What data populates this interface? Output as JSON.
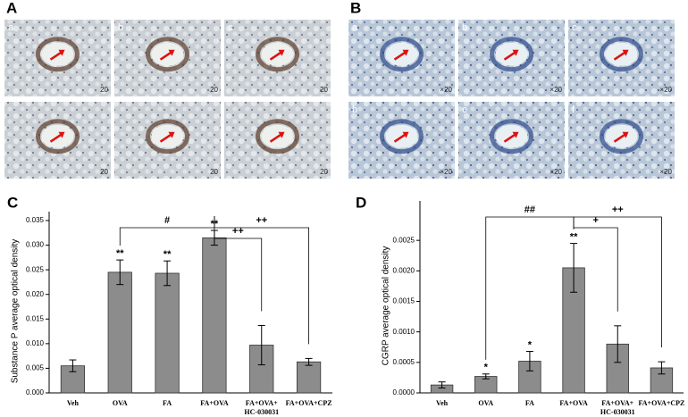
{
  "panels": [
    {
      "label": "A",
      "tiles": [
        {
          "sublabel": "a",
          "magnification": "20"
        },
        {
          "sublabel": "b",
          "magnification": "20"
        },
        {
          "sublabel": "c",
          "magnification": "20"
        },
        {
          "magnification": "20"
        },
        {
          "magnification": "20"
        },
        {
          "magnification": "20"
        }
      ]
    },
    {
      "label": "B",
      "tiles": [
        {
          "sublabel": "a",
          "magnification": "×20"
        },
        {
          "sublabel": "b",
          "magnification": "×20"
        },
        {
          "sublabel": "c",
          "magnification": "×20"
        },
        {
          "sublabel": "b",
          "magnification": "×20"
        },
        {
          "sublabel": "e",
          "magnification": "×20"
        },
        {
          "sublabel": "f",
          "magnification": "×20"
        }
      ]
    }
  ],
  "chart_data": [
    {
      "type": "bar",
      "panel_label": "C",
      "y_label": "Substance P average optical density",
      "categories": [
        "Veh",
        "OVA",
        "FA",
        "FA+OVA",
        "FA+OVA+ HC-030031",
        "FA+OVA+CPZ"
      ],
      "values": [
        0.0055,
        0.0245,
        0.0243,
        0.0315,
        0.0097,
        0.0063
      ],
      "errors": [
        0.0012,
        0.0025,
        0.0025,
        0.0015,
        0.004,
        0.0007
      ],
      "bar_annotations": [
        null,
        "**",
        "**",
        "**",
        null,
        null
      ],
      "brackets": [
        {
          "from": 1,
          "to": 3,
          "label": "#"
        },
        {
          "from": 3,
          "to": 5,
          "label": "++"
        },
        {
          "from": 3,
          "to": 4,
          "label": "++"
        }
      ],
      "color": "#8c8c8c",
      "ylim": [
        0,
        0.035
      ],
      "yticks": [
        {
          "value": 0,
          "label": "0.000"
        },
        {
          "value": 0.005,
          "label": "0.005"
        },
        {
          "value": 0.01,
          "label": "0.010"
        },
        {
          "value": 0.015,
          "label": "0.015"
        },
        {
          "value": 0.02,
          "label": "0.020"
        },
        {
          "value": 0.025,
          "label": "0.025"
        },
        {
          "value": 0.03,
          "label": "0.030"
        },
        {
          "value": 0.035,
          "label": "0.035"
        }
      ]
    },
    {
      "type": "bar",
      "panel_label": "D",
      "y_label": "CGRP average optical density",
      "categories": [
        "Veh",
        "OVA",
        "FA",
        "FA+OVA",
        "FA+OVA+ HC-030031",
        "FA+OVA+CPZ"
      ],
      "values": [
        0.00013,
        0.00027,
        0.00052,
        0.00205,
        0.0008,
        0.00041
      ],
      "errors": [
        5e-05,
        4e-05,
        0.00016,
        0.0004,
        0.0003,
        0.0001
      ],
      "bar_annotations": [
        null,
        "*",
        "*",
        "**",
        null,
        null
      ],
      "brackets": [
        {
          "from": 1,
          "to": 3,
          "label": "##"
        },
        {
          "from": 3,
          "to": 5,
          "label": "++"
        },
        {
          "from": 3,
          "to": 4,
          "label": "+"
        }
      ],
      "color": "#8c8c8c",
      "ylim": [
        0,
        0.003
      ],
      "yticks": [
        {
          "value": 0,
          "label": "0.0000"
        },
        {
          "value": 0.0005,
          "label": "0.0005"
        },
        {
          "value": 0.001,
          "label": "0.0010"
        },
        {
          "value": 0.0015,
          "label": "0.0015"
        },
        {
          "value": 0.002,
          "label": "0.0020"
        },
        {
          "value": 0.0025,
          "label": "0.0025"
        }
      ]
    }
  ]
}
